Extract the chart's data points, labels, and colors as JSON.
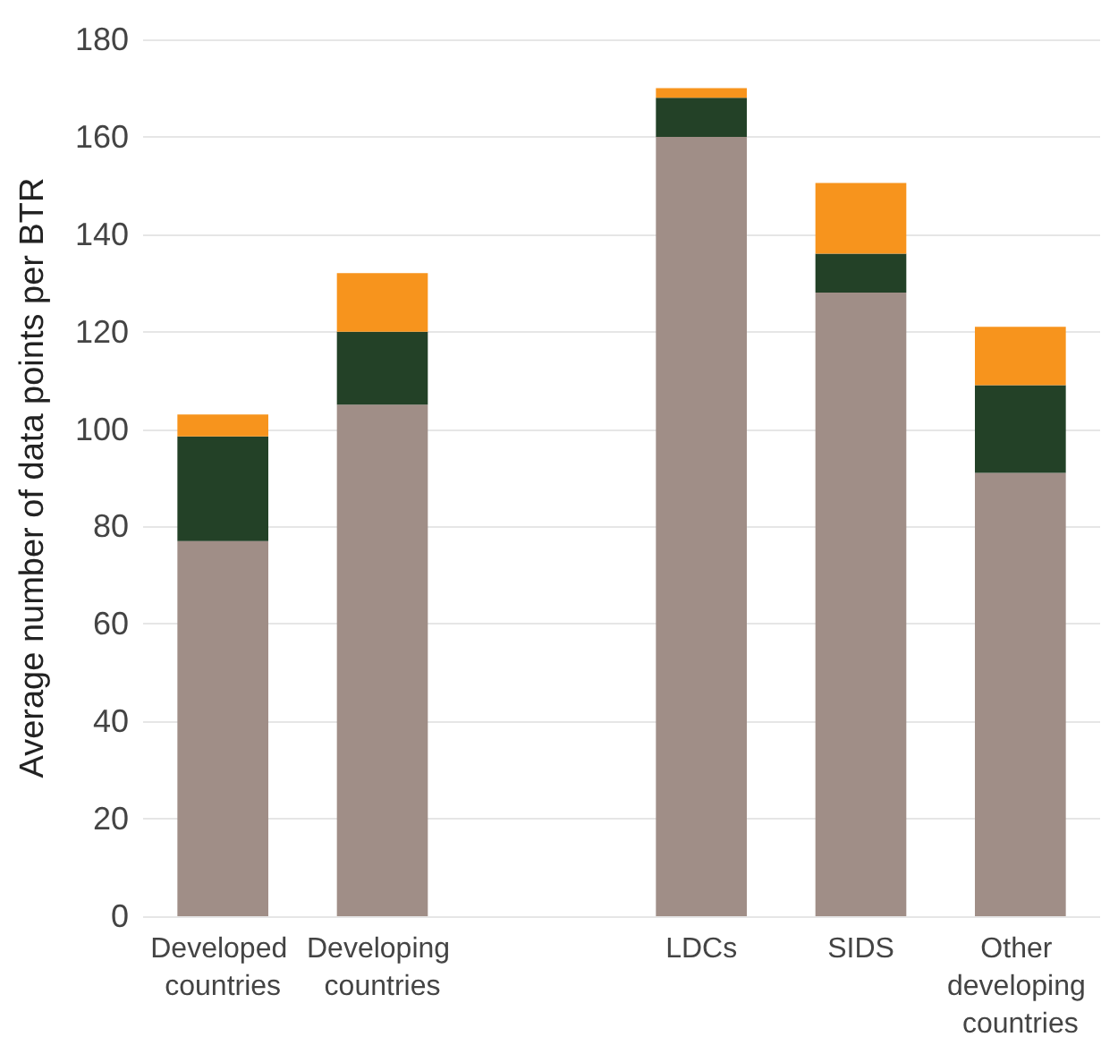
{
  "chart_data": {
    "type": "bar",
    "stacked": true,
    "ylabel": "Average number of data points per BTR",
    "categories": [
      "Developed countries",
      "Developing countries",
      null,
      "LDCs",
      "SIDS",
      "Other developing countries"
    ],
    "series": [
      {
        "color": "#a08e87",
        "values": [
          77,
          105,
          null,
          160,
          128,
          91
        ]
      },
      {
        "color": "#234127",
        "values": [
          21.5,
          15,
          null,
          8,
          8,
          18
        ]
      },
      {
        "color": "#f7941d",
        "values": [
          4.5,
          12,
          null,
          2,
          14.5,
          12
        ]
      }
    ],
    "ylim": [
      0,
      180
    ],
    "yticks": [
      0,
      20,
      40,
      60,
      80,
      100,
      120,
      140,
      160,
      180
    ],
    "grid": "y"
  }
}
